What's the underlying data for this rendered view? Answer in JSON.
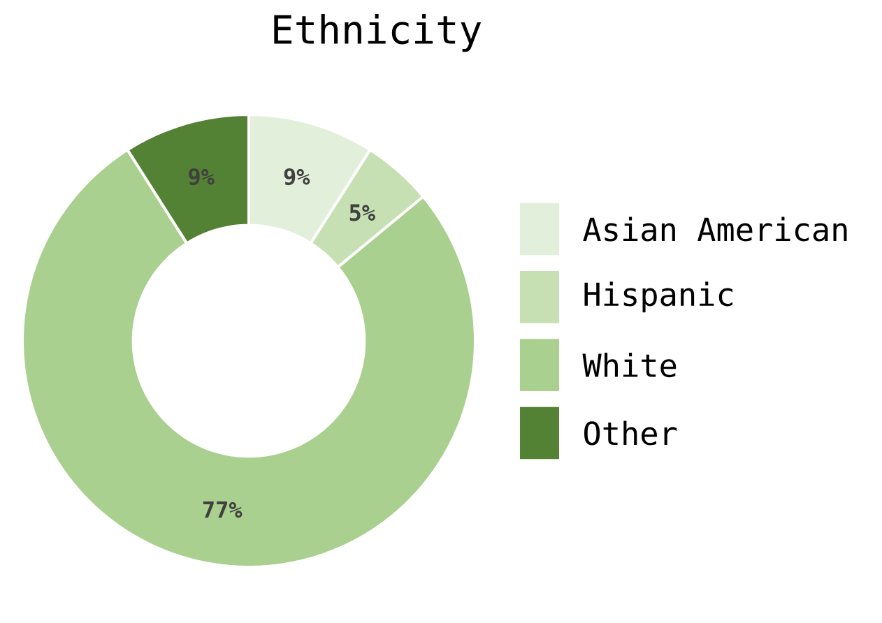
{
  "chart_data": {
    "type": "donut",
    "title": "Ethnicity",
    "categories": [
      "Asian American",
      "Hispanic",
      "White",
      "Other"
    ],
    "values": [
      9,
      5,
      77,
      9
    ],
    "colors": [
      "#e2efda",
      "#c6e0b4",
      "#a9d08e",
      "#548235"
    ],
    "value_labels": [
      "9%",
      "5%",
      "77%",
      "9%"
    ],
    "legend": "right"
  }
}
